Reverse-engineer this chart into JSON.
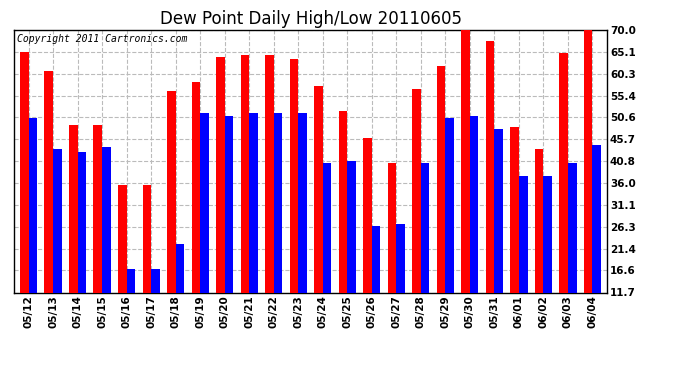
{
  "title": "Dew Point Daily High/Low 20110605",
  "copyright": "Copyright 2011 Cartronics.com",
  "dates": [
    "05/12",
    "05/13",
    "05/14",
    "05/15",
    "05/16",
    "05/17",
    "05/18",
    "05/19",
    "05/20",
    "05/21",
    "05/22",
    "05/23",
    "05/24",
    "05/25",
    "05/26",
    "05/27",
    "05/28",
    "05/29",
    "05/30",
    "05/31",
    "06/01",
    "06/02",
    "06/03",
    "06/04"
  ],
  "highs": [
    65.1,
    61.0,
    49.0,
    49.0,
    35.5,
    35.5,
    56.5,
    58.5,
    64.0,
    64.5,
    64.5,
    63.5,
    57.5,
    52.0,
    46.0,
    40.5,
    57.0,
    62.0,
    70.0,
    67.5,
    48.5,
    43.5,
    65.0,
    70.0
  ],
  "lows": [
    50.5,
    43.5,
    43.0,
    44.0,
    17.0,
    17.0,
    22.5,
    51.5,
    51.0,
    51.5,
    51.5,
    51.5,
    40.5,
    41.0,
    26.5,
    27.0,
    40.5,
    50.5,
    51.0,
    48.0,
    37.5,
    37.5,
    40.5,
    44.5
  ],
  "yticks": [
    11.7,
    16.6,
    21.4,
    26.3,
    31.1,
    36.0,
    40.8,
    45.7,
    50.6,
    55.4,
    60.3,
    65.1,
    70.0
  ],
  "ymin": 11.7,
  "ymax": 70.0,
  "high_color": "#ff0000",
  "low_color": "#0000ff",
  "bg_color": "#ffffff",
  "grid_color": "#bbbbbb",
  "bar_width": 0.35,
  "title_fontsize": 12,
  "tick_fontsize": 7.5,
  "copyright_fontsize": 7
}
